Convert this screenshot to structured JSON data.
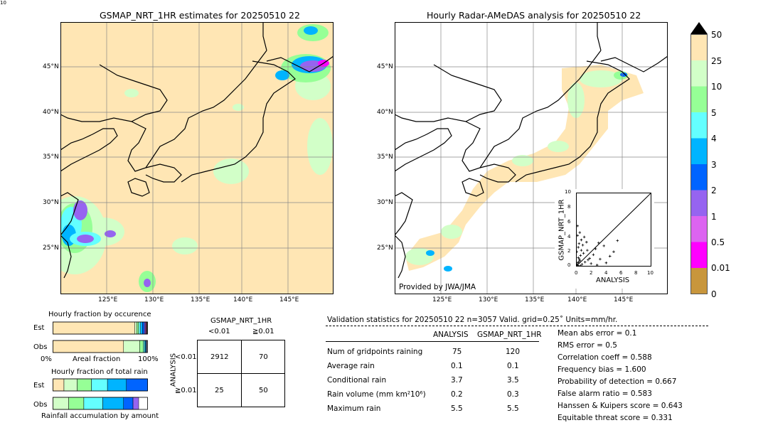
{
  "left_map": {
    "title": "GSMAP_NRT_1HR estimates for 20250510 22",
    "lat_labels": [
      "45°N",
      "40°N",
      "35°N",
      "30°N",
      "25°N"
    ],
    "lon_labels": [
      "125°E",
      "130°E",
      "135°E",
      "140°E",
      "145°E"
    ]
  },
  "right_map": {
    "title": "Hourly Radar-AMeDAS analysis for 20250510 22",
    "lat_labels": [
      "45°N",
      "40°N",
      "35°N",
      "30°N",
      "25°N"
    ],
    "lon_labels": [
      "125°E",
      "130°E",
      "135°E",
      "140°E",
      "145°E"
    ],
    "credit": "Provided by JWA/JMA"
  },
  "colorbar": {
    "labels": [
      "50",
      "25",
      "10",
      "5",
      "4",
      "3",
      "2",
      "1",
      "0.5",
      "0.01",
      "0"
    ],
    "colors": [
      "#c8963c",
      "#ff00ff",
      "#dc64f0",
      "#9664f0",
      "#0064ff",
      "#00b4ff",
      "#64ffff",
      "#96ff96",
      "#d2ffc8",
      "#ffe6b4"
    ],
    "over_color": "#000000"
  },
  "chart_data": [
    {
      "type": "scatter",
      "title": "",
      "xlabel": "ANALYSIS",
      "ylabel": "GSMAP_NRT_1HR",
      "xlim": [
        0,
        10
      ],
      "ylim": [
        0,
        10
      ],
      "xticks": [
        "0",
        "2",
        "4",
        "6",
        "8",
        "10"
      ],
      "yticks": [
        "0",
        "2",
        "4",
        "6",
        "8",
        "10"
      ],
      "points": [
        [
          0.1,
          0.2
        ],
        [
          0.2,
          0.5
        ],
        [
          0.3,
          1.2
        ],
        [
          0.1,
          2.0
        ],
        [
          0.4,
          3.1
        ],
        [
          0.2,
          4.2
        ],
        [
          0.5,
          0.8
        ],
        [
          0.6,
          1.5
        ],
        [
          0.3,
          2.6
        ],
        [
          0.8,
          0.3
        ],
        [
          1.0,
          1.8
        ],
        [
          0.7,
          3.6
        ],
        [
          1.2,
          0.6
        ],
        [
          1.5,
          2.2
        ],
        [
          1.1,
          4.0
        ],
        [
          0.9,
          2.9
        ],
        [
          1.8,
          1.1
        ],
        [
          2.0,
          0.4
        ],
        [
          2.3,
          1.6
        ],
        [
          2.6,
          2.4
        ],
        [
          3.0,
          3.2
        ],
        [
          3.2,
          1.0
        ],
        [
          3.7,
          2.8
        ],
        [
          4.0,
          0.5
        ],
        [
          4.5,
          1.4
        ],
        [
          5.0,
          2.0
        ],
        [
          5.5,
          3.5
        ],
        [
          0.2,
          5.5
        ],
        [
          0.5,
          4.6
        ],
        [
          1.4,
          3.3
        ],
        [
          0.1,
          0.05
        ],
        [
          0.15,
          0.1
        ],
        [
          0.05,
          0.3
        ],
        [
          0.25,
          0.15
        ],
        [
          0.35,
          0.6
        ],
        [
          0.45,
          1.0
        ],
        [
          0.6,
          0.1
        ],
        [
          0.7,
          2.2
        ],
        [
          1.6,
          0.9
        ],
        [
          2.8,
          0.2
        ]
      ]
    },
    {
      "type": "table",
      "title": "Hourly fraction by occurence",
      "rows": [
        "Est",
        "Obs"
      ],
      "xlabel": "Areal fraction",
      "xticks": [
        "0%",
        "100%"
      ],
      "fractions": {
        "Est": [
          0.87,
          0.02,
          0.02,
          0.02,
          0.02,
          0.02,
          0.01,
          0.01,
          0.005,
          0.005
        ],
        "Obs": [
          0.75,
          0.17,
          0.04,
          0.015,
          0.01,
          0.005,
          0.005,
          0.0,
          0.0,
          0.0
        ]
      }
    },
    {
      "type": "table",
      "title": "Hourly fraction of total rain",
      "rows": [
        "Est",
        "Obs"
      ],
      "xlabel": "Rainfall accumulation by amount",
      "fractions": {
        "Est": [
          0.12,
          0.14,
          0.15,
          0.17,
          0.2,
          0.23,
          0.15,
          0.0,
          0.0,
          0.0
        ],
        "Obs": [
          0.0,
          0.17,
          0.16,
          0.2,
          0.22,
          0.1,
          0.06,
          0.0,
          0.0,
          0.0
        ]
      }
    },
    {
      "type": "table",
      "title": "GSMAP_NRT_1HR",
      "col_headers": [
        "<0.01",
        "≧0.01"
      ],
      "row_axis_label": "ANALYSIS",
      "row_headers": [
        "<0.01",
        "≧0.01"
      ],
      "cells": [
        [
          "2912",
          "70"
        ],
        [
          "25",
          "50"
        ]
      ]
    }
  ],
  "validation": {
    "header": "Validation statistics for 20250510 22  n=3057 Valid. grid=0.25˚ Units=mm/hr.",
    "col_analysis": "ANALYSIS",
    "col_gsmap": "GSMAP_NRT_1HR",
    "rows": [
      {
        "label": "Num of gridpoints raining",
        "a": "75",
        "g": "120"
      },
      {
        "label": "Average rain",
        "a": "0.1",
        "g": "0.1"
      },
      {
        "label": "Conditional rain",
        "a": "3.7",
        "g": "3.5"
      },
      {
        "label": "Rain volume (mm km²10⁶)",
        "a": "0.2",
        "g": "0.3"
      },
      {
        "label": "Maximum rain",
        "a": "5.5",
        "g": "5.5"
      }
    ],
    "scores": [
      "Mean abs error =    0.1",
      "RMS error =    0.5",
      "Correlation coeff =  0.588",
      "Frequency bias =  1.600",
      "Probability of detection =  0.667",
      "False alarm ratio =  0.583",
      "Hanssen & Kuipers score =  0.643",
      "Equitable threat score =  0.331"
    ]
  }
}
